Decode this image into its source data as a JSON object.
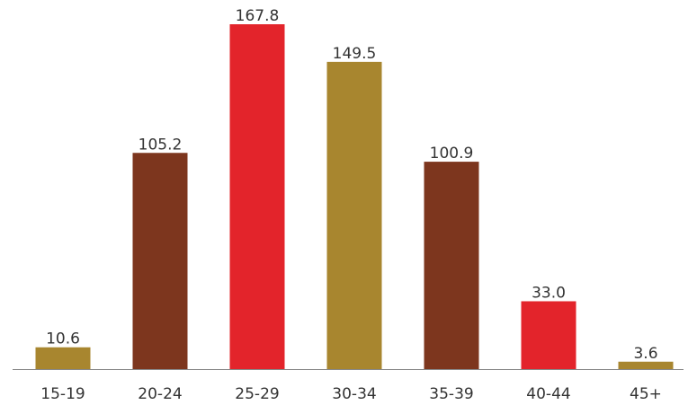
{
  "chart_data": {
    "type": "bar",
    "title": "",
    "xlabel": "",
    "ylabel": "",
    "categories": [
      "15-19",
      "20-24",
      "25-29",
      "30-34",
      "35-39",
      "40-44",
      "45+"
    ],
    "values": [
      10.6,
      105.2,
      167.8,
      149.5,
      100.9,
      33.0,
      3.6
    ],
    "value_labels": [
      "10.6",
      "105.2",
      "167.8",
      "149.5",
      "100.9",
      "33.0",
      "3.6"
    ],
    "colors": [
      "#a8862f",
      "#7d361e",
      "#e3242b",
      "#a8862f",
      "#7d361e",
      "#e3242b",
      "#a8862f"
    ],
    "ylim": [
      0,
      167.8
    ],
    "grid": false,
    "legend": "none"
  }
}
